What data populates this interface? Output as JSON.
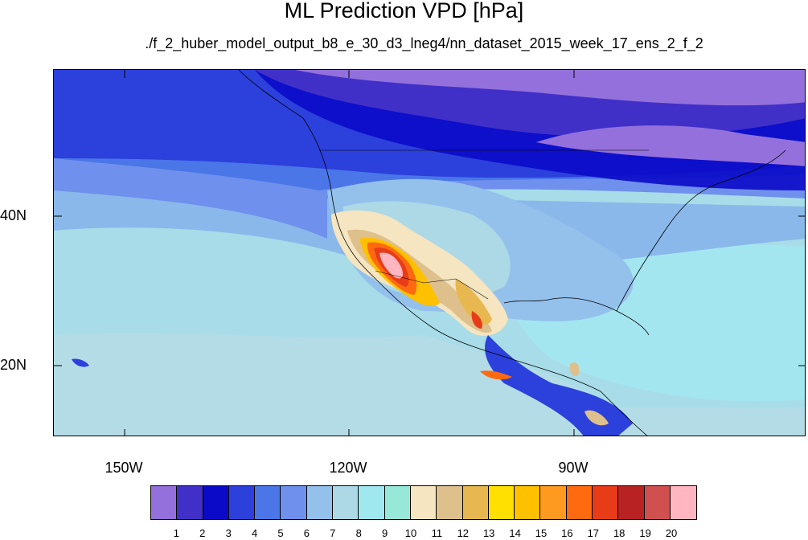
{
  "title": "ML Prediction VPD [hPa]",
  "subtitle": "./f_2_huber_model_output_b8_e_30_d3_lneg4/nn_dataset_2015_week_17_ens_2_f_2",
  "lat_labels": [
    "40N",
    "20N"
  ],
  "lon_labels": [
    "150W",
    "120W",
    "90W"
  ],
  "colorbar": {
    "colors": [
      "#9370db",
      "#4030c8",
      "#0a0ac8",
      "#2c40dc",
      "#4a76e8",
      "#6f90ec",
      "#94c0ec",
      "#add8e6",
      "#a0e8f0",
      "#98e8d8",
      "#f5e5c0",
      "#dec08c",
      "#e8b850",
      "#ffe000",
      "#ffc000",
      "#ff9a20",
      "#ff6a10",
      "#e83c18",
      "#b82222",
      "#d05050",
      "#ffb6c1"
    ],
    "labels": [
      "1",
      "2",
      "3",
      "4",
      "5",
      "6",
      "7",
      "8",
      "9",
      "10",
      "11",
      "12",
      "13",
      "14",
      "15",
      "16",
      "17",
      "18",
      "19",
      "20"
    ]
  }
}
